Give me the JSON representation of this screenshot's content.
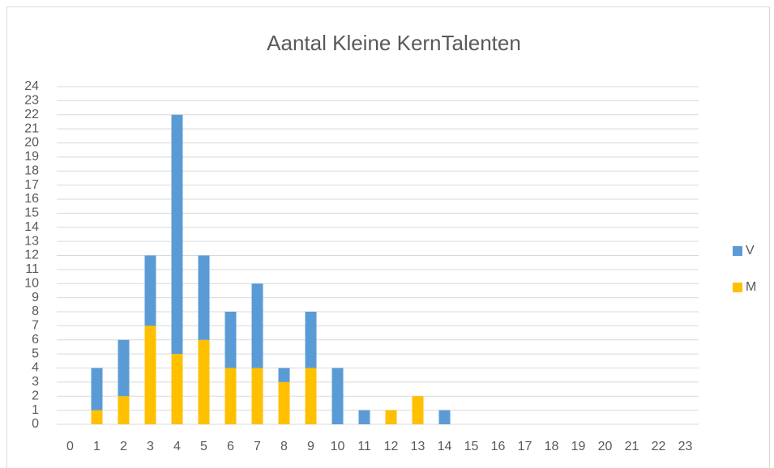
{
  "chart_data": {
    "type": "bar",
    "stacked": true,
    "title": "Aantal Kleine KernTalenten",
    "categories": [
      "0",
      "1",
      "2",
      "3",
      "4",
      "5",
      "6",
      "7",
      "8",
      "9",
      "10",
      "11",
      "12",
      "13",
      "14",
      "15",
      "16",
      "17",
      "18",
      "19",
      "20",
      "21",
      "22",
      "23"
    ],
    "series": [
      {
        "name": "M",
        "color": "#ffc000",
        "values": [
          0,
          1,
          2,
          7,
          5,
          6,
          4,
          4,
          3,
          4,
          0,
          0,
          1,
          2,
          0,
          0,
          0,
          0,
          0,
          0,
          0,
          0,
          0,
          0
        ]
      },
      {
        "name": "V",
        "color": "#5b9bd5",
        "values": [
          0,
          3,
          4,
          5,
          17,
          6,
          4,
          6,
          1,
          4,
          4,
          1,
          0,
          0,
          1,
          0,
          0,
          0,
          0,
          0,
          0,
          0,
          0,
          0
        ]
      }
    ],
    "ylim": [
      0,
      24
    ],
    "yticks": [
      0,
      1,
      2,
      3,
      4,
      5,
      6,
      7,
      8,
      9,
      10,
      11,
      12,
      13,
      14,
      15,
      16,
      17,
      18,
      19,
      20,
      21,
      22,
      23,
      24
    ],
    "grid": true,
    "legend": "right"
  }
}
